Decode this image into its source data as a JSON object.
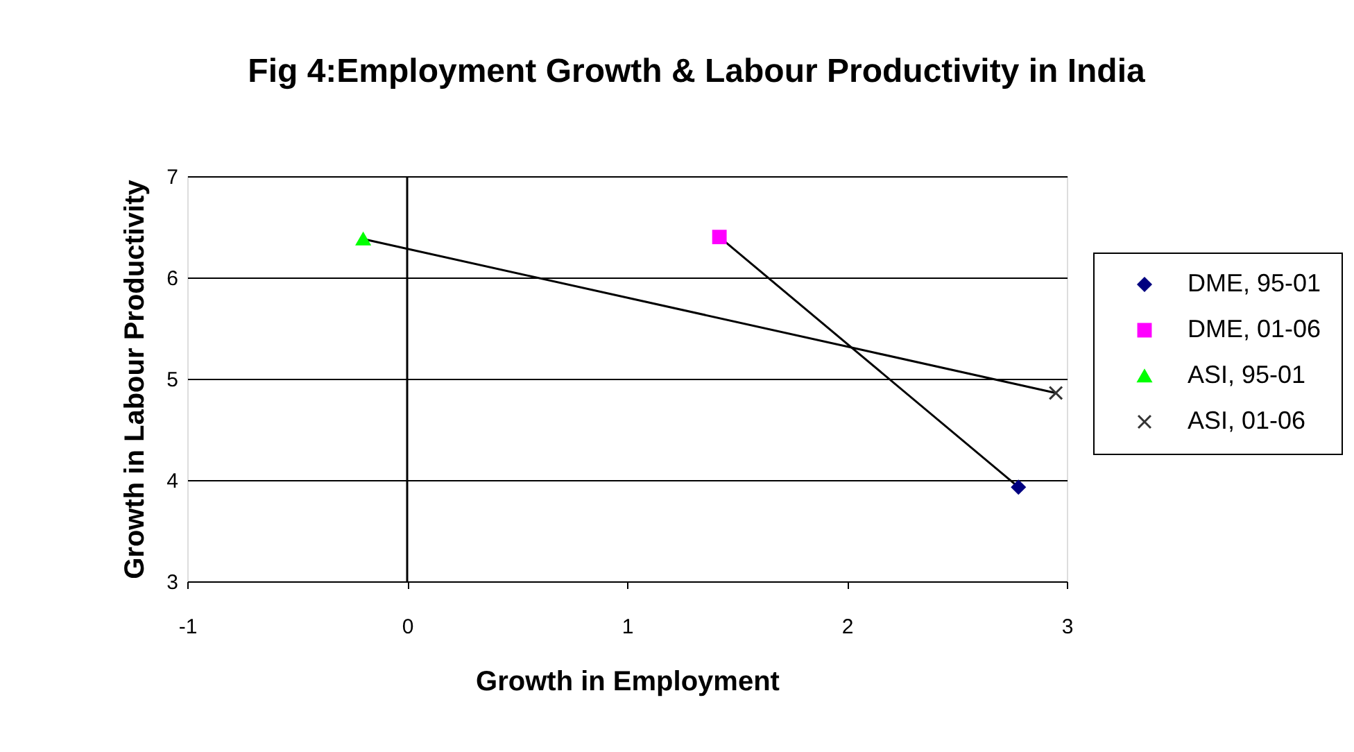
{
  "chart_data": {
    "type": "scatter",
    "title": "Fig 4:Employment Growth & Labour Productivity in India",
    "xlabel": "Growth in Employment",
    "ylabel": "Growth in Labour Productivity",
    "xlim": [
      -1,
      3
    ],
    "xticks": [
      -1,
      0,
      1,
      2,
      3
    ],
    "ylim": [
      3,
      7
    ],
    "yticks": [
      3,
      4,
      5,
      6,
      7
    ],
    "grid": "y",
    "legend": "right",
    "ref_lines": [
      {
        "axis": "x",
        "value": 0
      }
    ],
    "series": [
      {
        "name": "DME, 95-01",
        "color": "#000080",
        "marker": "diamond",
        "x": [
          2.78
        ],
        "values": [
          3.93
        ]
      },
      {
        "name": "DME, 01-06",
        "color": "#ff00ff",
        "marker": "square",
        "x": [
          1.42
        ],
        "values": [
          6.4
        ]
      },
      {
        "name": "ASI, 95-01",
        "color": "#00ff00",
        "marker": "triangle",
        "x": [
          -0.2
        ],
        "values": [
          6.38
        ]
      },
      {
        "name": "ASI, 01-06",
        "color": "#333333",
        "marker": "cross",
        "x": [
          2.95
        ],
        "values": [
          4.86
        ]
      },
      {
        "type": "line",
        "color": "#000000",
        "marker": "none",
        "x": [
          1.42,
          2.78
        ],
        "values": [
          6.4,
          3.93
        ]
      },
      {
        "type": "line",
        "color": "#000000",
        "marker": "none",
        "x": [
          -0.2,
          2.95
        ],
        "values": [
          6.38,
          4.86
        ]
      }
    ]
  }
}
